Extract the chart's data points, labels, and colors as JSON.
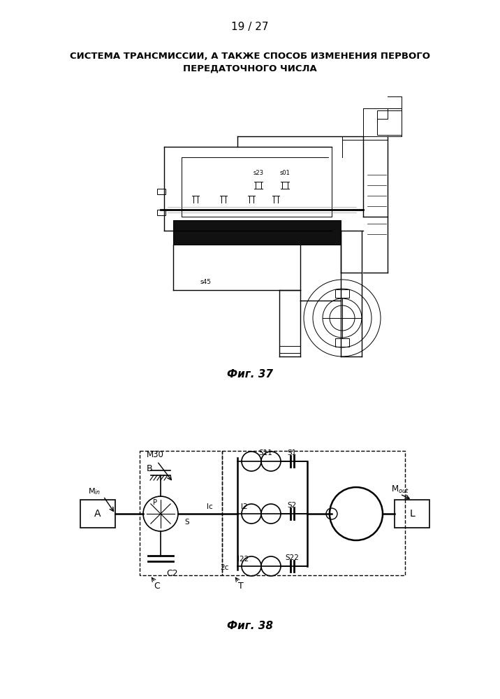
{
  "page_number": "19 / 27",
  "title_line1": "СИСТЕМА ТРАНСМИССИИ, А ТАКЖЕ СПОСОБ ИЗМЕНЕНИЯ ПЕРВОГО",
  "title_line2": "ПЕРЕДАТОЧНОГО ЧИСЛА",
  "fig37_caption": "Фиг. 37",
  "fig38_caption": "Фиг. 38",
  "bg_color": "#ffffff",
  "text_color": "#000000"
}
